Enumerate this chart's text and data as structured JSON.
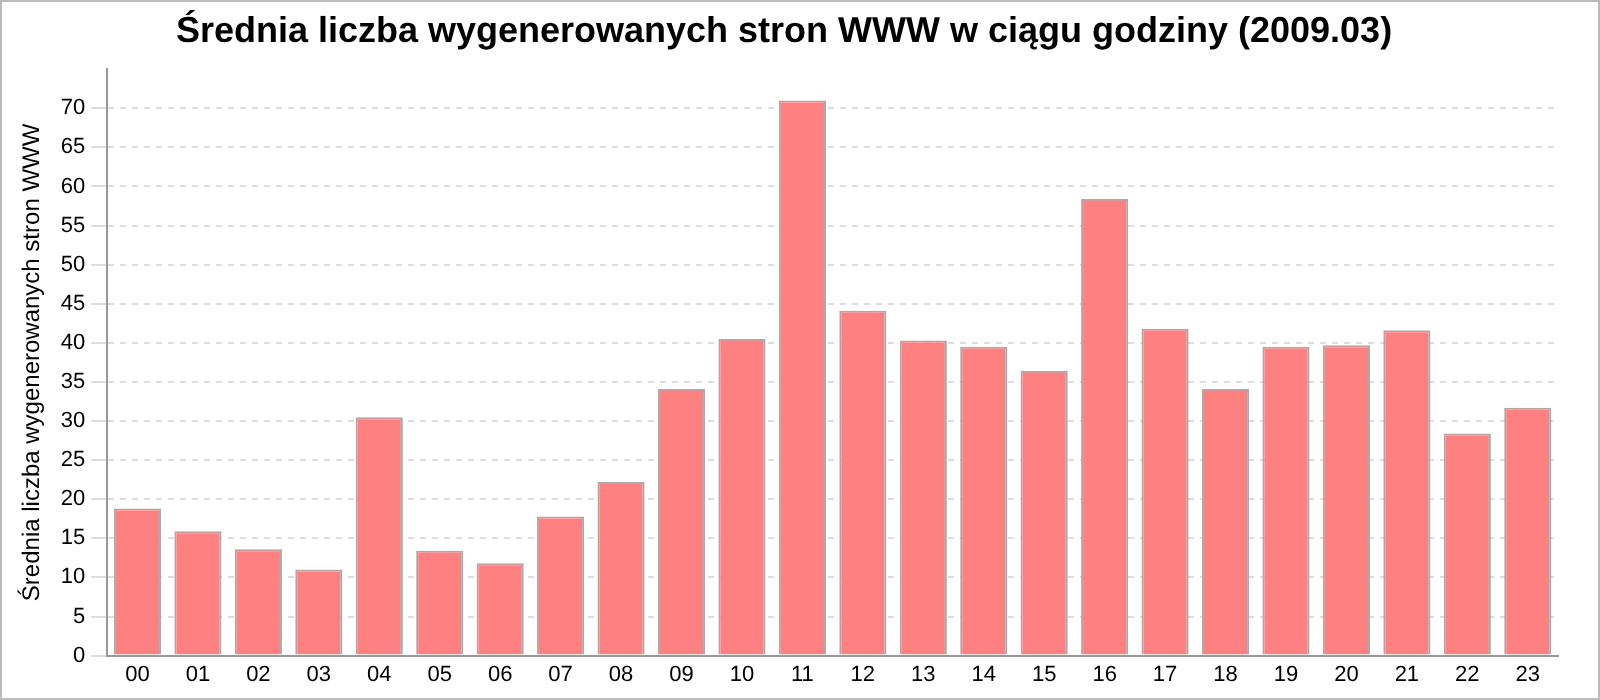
{
  "chart_data": {
    "type": "bar",
    "title": "Średnia liczba wygenerowanych stron WWW w ciągu godziny (2009.03)",
    "ylabel": "Średnia liczba wygenerowanych stron WWW",
    "categories": [
      "00",
      "01",
      "02",
      "03",
      "04",
      "05",
      "06",
      "07",
      "08",
      "09",
      "10",
      "11",
      "12",
      "13",
      "14",
      "15",
      "16",
      "17",
      "18",
      "19",
      "20",
      "21",
      "22",
      "23"
    ],
    "values": [
      18.8,
      15.9,
      13.6,
      11.0,
      30.5,
      13.4,
      11.8,
      17.8,
      22.2,
      34.1,
      40.5,
      71.0,
      44.1,
      40.3,
      39.5,
      36.4,
      58.4,
      41.8,
      34.1,
      39.5,
      39.7,
      41.6,
      28.4,
      31.7
    ],
    "color": "#ff8080",
    "ylim": [
      0,
      75
    ],
    "yticks": [
      0,
      5,
      10,
      15,
      20,
      25,
      30,
      35,
      40,
      45,
      50,
      55,
      60,
      65,
      70
    ],
    "grid": "y"
  }
}
